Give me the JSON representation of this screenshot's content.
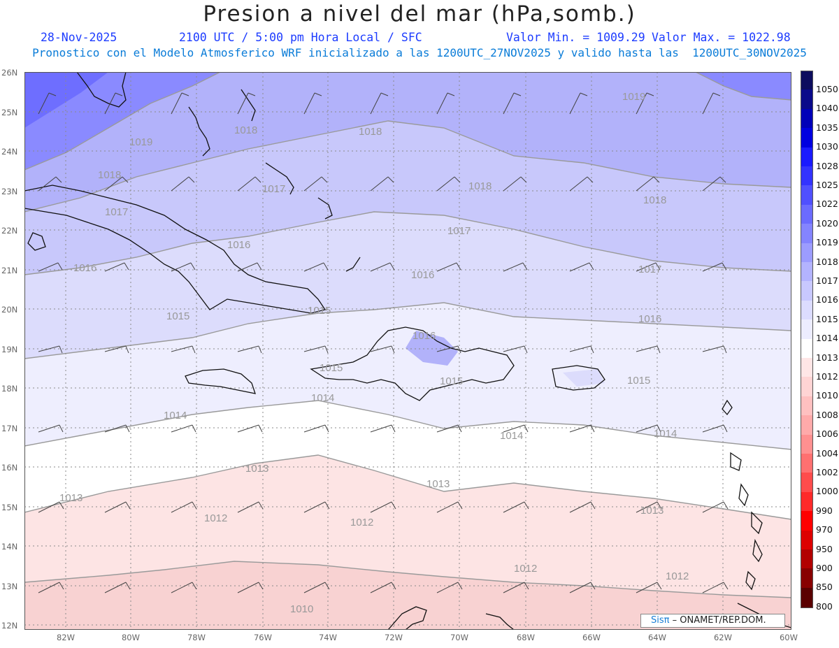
{
  "header": {
    "title": "Presion a nivel del mar (hPa,somb.)",
    "date": "28-Nov-2025",
    "time": "2100 UTC / 5:00 pm Hora Local / SFC",
    "min_label": "Valor Min. = 1009.29",
    "max_label": "Valor Max. = 1022.98",
    "model_line": "Pronostico con el Modelo Atmosferico WRF inicializado a las 1200UTC_27NOV2025 y valido hasta las  1200UTC_30NOV2025"
  },
  "axes": {
    "lat_labels": [
      "26N",
      "25N",
      "24N",
      "23N",
      "22N",
      "21N",
      "20N",
      "19N",
      "18N",
      "17N",
      "16N",
      "15N",
      "14N",
      "13N",
      "12N"
    ],
    "lon_labels": [
      "82W",
      "80W",
      "78W",
      "76W",
      "74W",
      "72W",
      "70W",
      "68W",
      "66W",
      "64W",
      "62W",
      "60W"
    ]
  },
  "contour_labels": [
    {
      "text": "1019"
    },
    {
      "text": "1019"
    },
    {
      "text": "1018"
    },
    {
      "text": "1018"
    },
    {
      "text": "1018"
    },
    {
      "text": "1018"
    },
    {
      "text": "1018"
    },
    {
      "text": "1017"
    },
    {
      "text": "1017"
    },
    {
      "text": "1017"
    },
    {
      "text": "1017"
    },
    {
      "text": "1016"
    },
    {
      "text": "1016"
    },
    {
      "text": "1016"
    },
    {
      "text": "1016"
    },
    {
      "text": "1016"
    },
    {
      "text": "1015"
    },
    {
      "text": "1015"
    },
    {
      "text": "1015"
    },
    {
      "text": "1015"
    },
    {
      "text": "1015"
    },
    {
      "text": "1014"
    },
    {
      "text": "1014"
    },
    {
      "text": "1014"
    },
    {
      "text": "1014"
    },
    {
      "text": "1013"
    },
    {
      "text": "1013"
    },
    {
      "text": "1013"
    },
    {
      "text": "1013"
    },
    {
      "text": "1012"
    },
    {
      "text": "1012"
    },
    {
      "text": "1012"
    },
    {
      "text": "1012"
    },
    {
      "text": "1010"
    }
  ],
  "colorbar": {
    "levels": [
      "1050",
      "1040",
      "1035",
      "1030",
      "1028",
      "1025",
      "1022",
      "1020",
      "1019",
      "1018",
      "1017",
      "1016",
      "1015",
      "1014",
      "1013",
      "1012",
      "1010",
      "1008",
      "1006",
      "1004",
      "1002",
      "1000",
      "990",
      "970",
      "950",
      "900",
      "850",
      "800"
    ],
    "colors": [
      "#0d0d5e",
      "#0a0a8a",
      "#0000b8",
      "#0000e0",
      "#1a1aff",
      "#3333ff",
      "#5050ff",
      "#6b6bff",
      "#8484ff",
      "#9c9cff",
      "#b3b3ff",
      "#c8c8ff",
      "#dcdcff",
      "#ededff",
      "#ffffff",
      "#ffe6e6",
      "#ffd4d4",
      "#ffc0c0",
      "#ffaaaa",
      "#ff9090",
      "#ff7070",
      "#ff4c4c",
      "#ff2a2a",
      "#ff0000",
      "#dd0000",
      "#b20000",
      "#880000",
      "#5a0000"
    ]
  },
  "credit": {
    "brand": "Sisπ",
    "text": " – ONAMET/REP.DOM."
  }
}
